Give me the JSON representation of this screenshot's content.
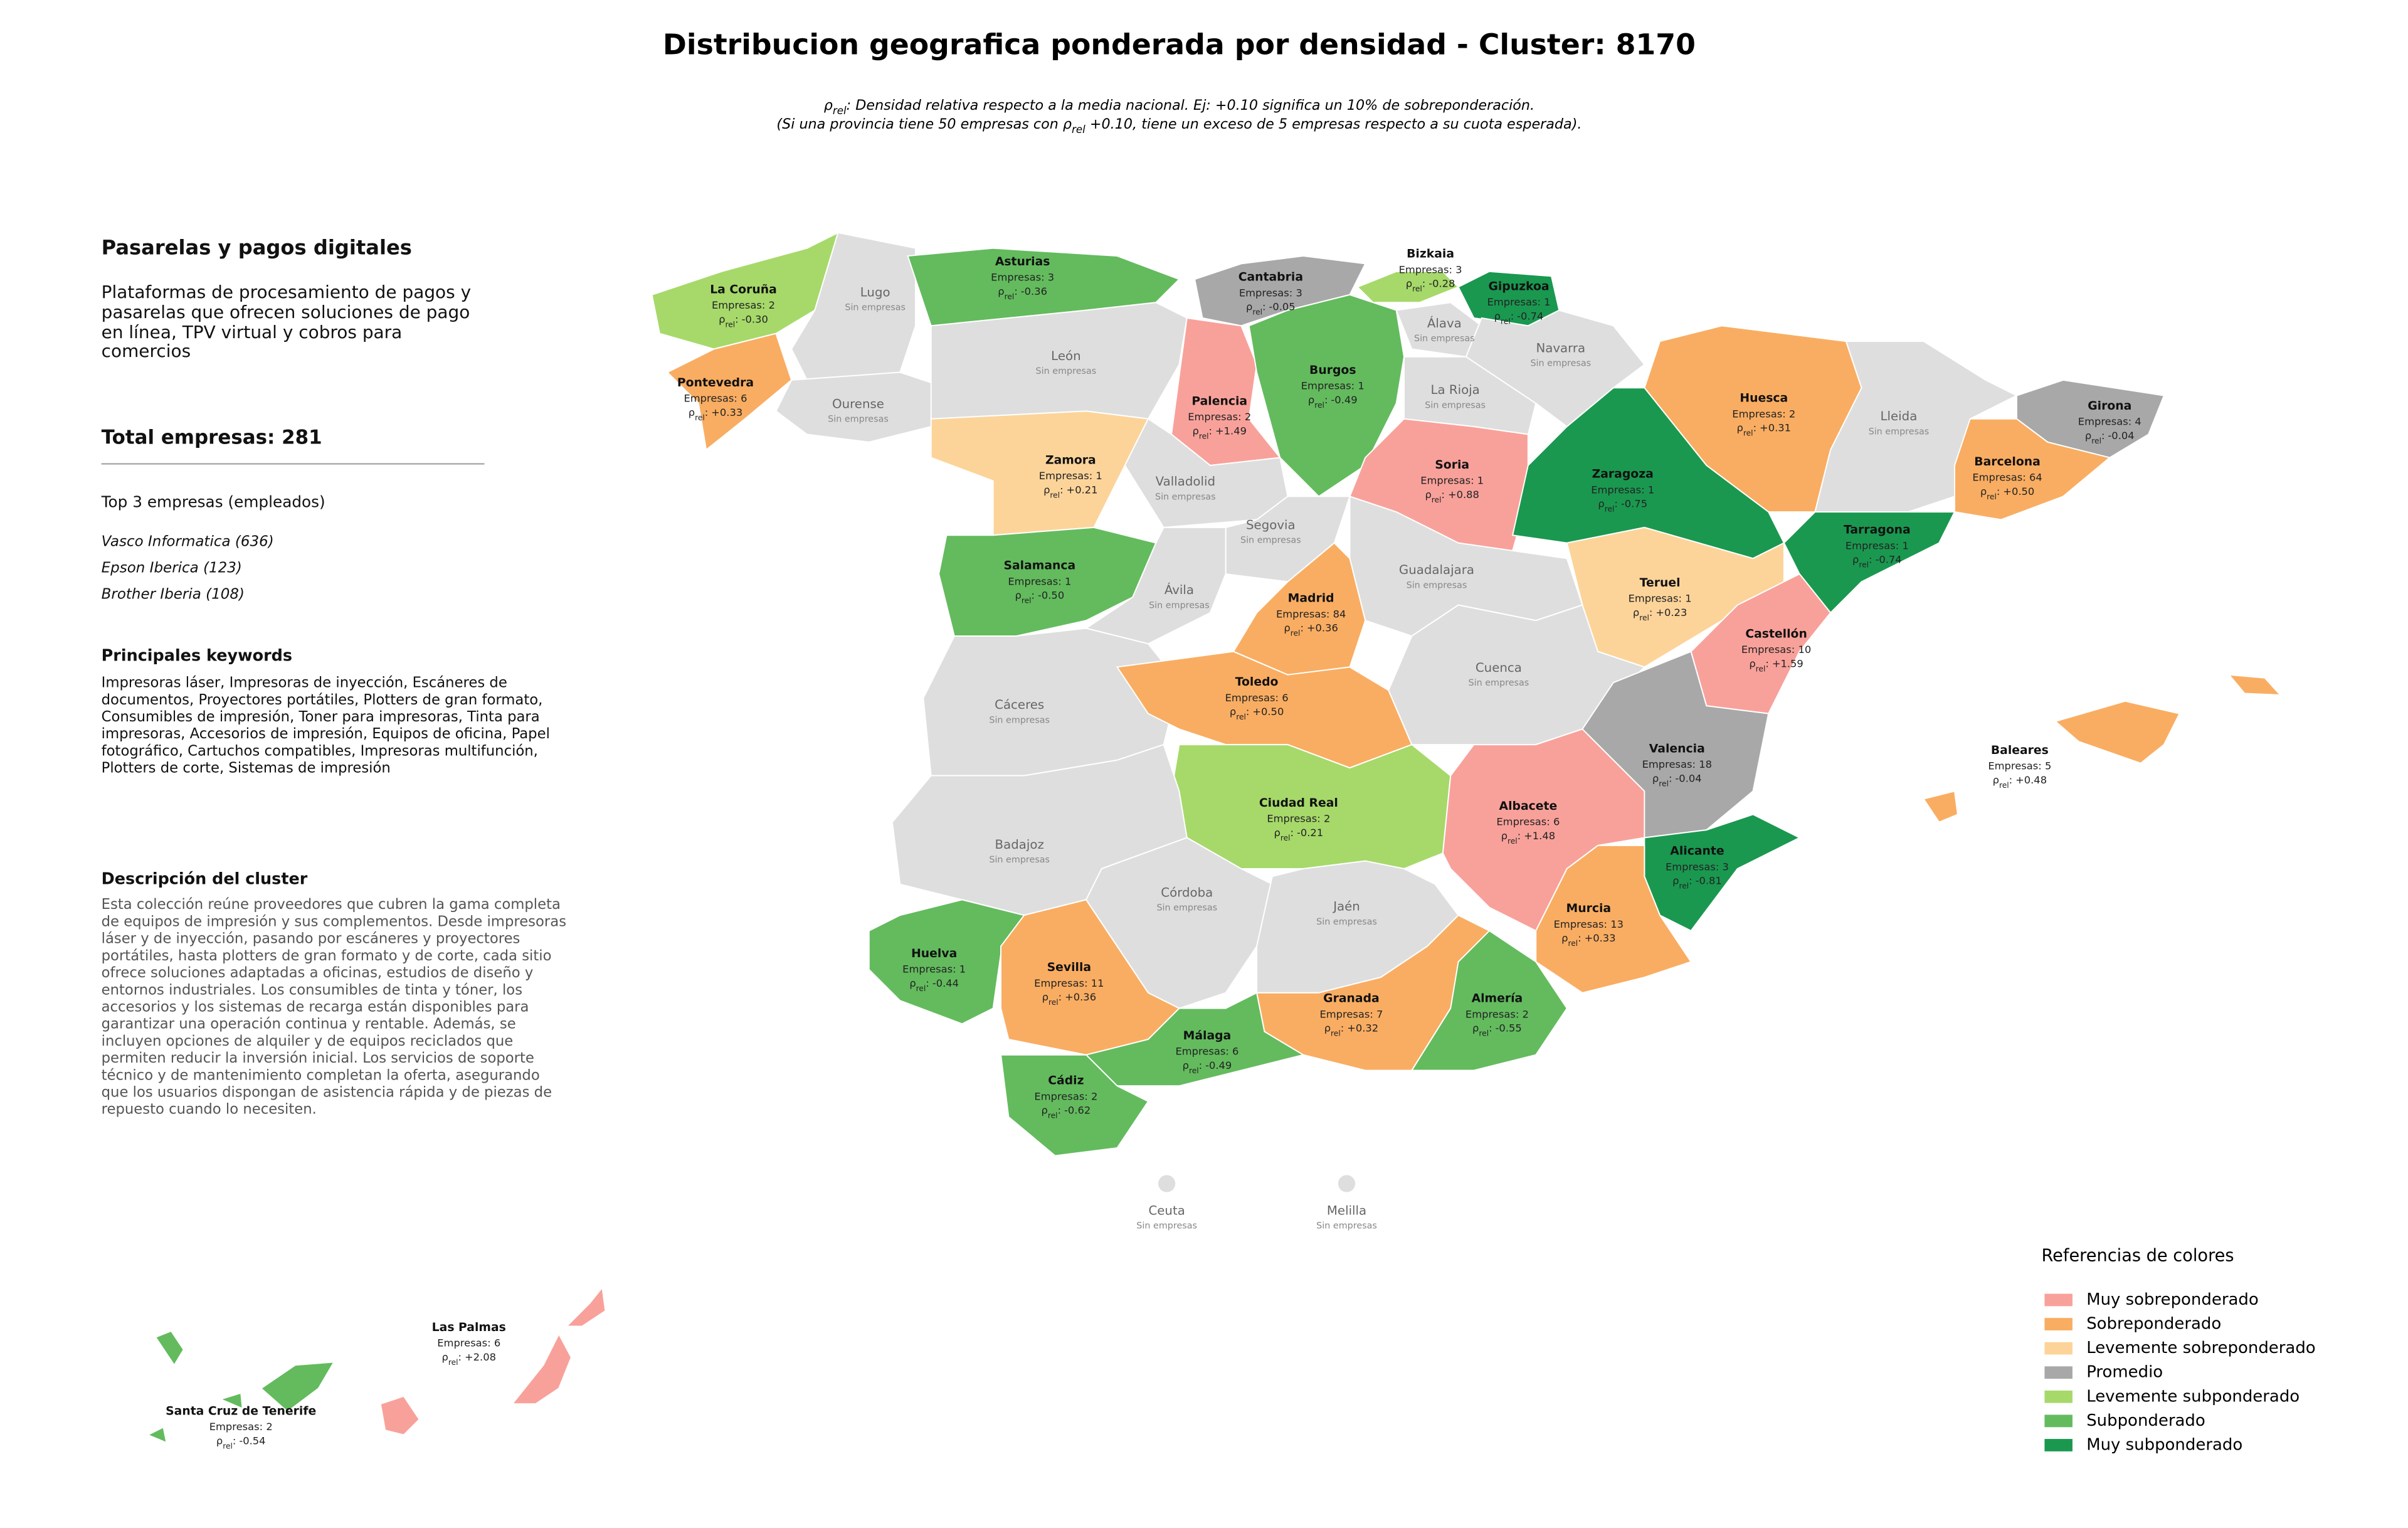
{
  "title": "Distribucion geografica ponderada por densidad - Cluster: 8170",
  "rho_symbol": "ρ",
  "rho_subscript": "rel",
  "rho_separator": ":",
  "notes": [
    {
      "pre": "",
      "post": ": Densidad relativa respecto a la media nacional. Ej: +0.10 significa un 10% de sobreponderación."
    },
    {
      "pre": "(Si una provincia tiene 50 empresas con ",
      "post": " +0.10, tiene un exceso de 5 empresas respecto a su cuota esperada)."
    }
  ],
  "panel": {
    "cluster_name": "Pasarelas y pagos digitales",
    "cluster_summary": "Plataformas de procesamiento de pagos y pasarelas que ofrecen soluciones de pago en línea, TPV virtual y cobros para comercios",
    "total": "Total empresas: 281",
    "top_heading": "Top 3 empresas (empleados)",
    "top": [
      "Vasco Informatica (636)",
      "Epson Iberica (123)",
      "Brother Iberia (108)"
    ],
    "keywords_heading": "Principales keywords",
    "keywords": "Impresoras láser, Impresoras de inyección, Escáneres de documentos, Proyectores portátiles, Plotters de gran formato, Consumibles de impresión, Toner para impresoras, Tinta para impresoras, Accesorios de impresión, Equipos de oficina, Papel fotográfico, Cartuchos compatibles, Impresoras multifunción, Plotters de corte, Sistemas de impresión",
    "description_heading": "Descripción del cluster",
    "description": "Esta colección reúne proveedores que cubren la gama completa de equipos de impresión y sus complementos. Desde impresoras láser y de inyección, pasando por escáneres y proyectores portátiles, hasta plotters de gran formato y de corte, cada sitio ofrece soluciones adaptadas a oficinas, estudios de diseño y entornos industriales. Los consumibles de tinta y tóner, los accesorios y los sistemas de recarga están disponibles para garantizar una operación continua y rentable. Además, se incluyen opciones de alquiler y de equipos reciclados que permiten reducir la inversión inicial. Los servicios de soporte técnico y de mantenimiento completan la oferta, asegurando que los usuarios dispongan de asistencia rápida y de piezas de repuesto cuando lo necesiten."
  },
  "legend": {
    "title": "Referencias de colores",
    "items": [
      {
        "label": "Muy sobreponderado",
        "color": "#f8a19a"
      },
      {
        "label": "Sobreponderado",
        "color": "#f9ad62"
      },
      {
        "label": "Levemente sobreponderado",
        "color": "#fcd49a"
      },
      {
        "label": "Promedio",
        "color": "#a8a8a8"
      },
      {
        "label": "Levemente subponderado",
        "color": "#a6d96a"
      },
      {
        "label": "Subponderado",
        "color": "#63bb5e"
      },
      {
        "label": "Muy subponderado",
        "color": "#1a9850"
      }
    ]
  },
  "no_data_color": "#dedede",
  "provinces": [
    {
      "name": "La Coruña",
      "empresas": "Empresas: 2",
      "rho": "-0.30",
      "category": 4
    },
    {
      "name": "Lugo",
      "note": "Sin empresas"
    },
    {
      "name": "Asturias",
      "empresas": "Empresas: 3",
      "rho": "-0.36",
      "category": 5
    },
    {
      "name": "Cantabria",
      "empresas": "Empresas: 3",
      "rho": "-0.05",
      "category": 3
    },
    {
      "name": "Bizkaia",
      "empresas": "Empresas: 3",
      "rho": "-0.28",
      "category": 4
    },
    {
      "name": "Gipuzkoa",
      "empresas": "Empresas: 1",
      "rho": "-0.74",
      "category": 6
    },
    {
      "name": "Pontevedra",
      "empresas": "Empresas: 6",
      "rho": "+0.33",
      "category": 1
    },
    {
      "name": "Ourense",
      "note": "Sin empresas"
    },
    {
      "name": "León",
      "note": "Sin empresas"
    },
    {
      "name": "Palencia",
      "empresas": "Empresas: 2",
      "rho": "+1.49",
      "category": 0
    },
    {
      "name": "Burgos",
      "empresas": "Empresas: 1",
      "rho": "-0.49",
      "category": 5
    },
    {
      "name": "Álava",
      "note": "Sin empresas"
    },
    {
      "name": "Navarra",
      "note": "Sin empresas"
    },
    {
      "name": "La Rioja",
      "note": "Sin empresas"
    },
    {
      "name": "Huesca",
      "empresas": "Empresas: 2",
      "rho": "+0.31",
      "category": 1
    },
    {
      "name": "Lleida",
      "note": "Sin empresas"
    },
    {
      "name": "Girona",
      "empresas": "Empresas: 4",
      "rho": "-0.04",
      "category": 3
    },
    {
      "name": "Zamora",
      "empresas": "Empresas: 1",
      "rho": "+0.21",
      "category": 2
    },
    {
      "name": "Valladolid",
      "note": "Sin empresas"
    },
    {
      "name": "Soria",
      "empresas": "Empresas: 1",
      "rho": "+0.88",
      "category": 0
    },
    {
      "name": "Zaragoza",
      "empresas": "Empresas: 1",
      "rho": "-0.75",
      "category": 6
    },
    {
      "name": "Barcelona",
      "empresas": "Empresas: 64",
      "rho": "+0.50",
      "category": 1
    },
    {
      "name": "Tarragona",
      "empresas": "Empresas: 1",
      "rho": "-0.74",
      "category": 6
    },
    {
      "name": "Segovia",
      "note": "Sin empresas"
    },
    {
      "name": "Salamanca",
      "empresas": "Empresas: 1",
      "rho": "-0.50",
      "category": 5
    },
    {
      "name": "Ávila",
      "note": "Sin empresas"
    },
    {
      "name": "Guadalajara",
      "note": "Sin empresas"
    },
    {
      "name": "Madrid",
      "empresas": "Empresas: 84",
      "rho": "+0.36",
      "category": 1
    },
    {
      "name": "Teruel",
      "empresas": "Empresas: 1",
      "rho": "+0.23",
      "category": 2
    },
    {
      "name": "Castellón",
      "empresas": "Empresas: 10",
      "rho": "+1.59",
      "category": 0
    },
    {
      "name": "Cáceres",
      "note": "Sin empresas"
    },
    {
      "name": "Toledo",
      "empresas": "Empresas: 6",
      "rho": "+0.50",
      "category": 1
    },
    {
      "name": "Cuenca",
      "note": "Sin empresas"
    },
    {
      "name": "Valencia",
      "empresas": "Empresas: 18",
      "rho": "-0.04",
      "category": 3
    },
    {
      "name": "Baleares",
      "empresas": "Empresas: 5",
      "rho": "+0.48",
      "category": 1
    },
    {
      "name": "Ciudad Real",
      "empresas": "Empresas: 2",
      "rho": "-0.21",
      "category": 4
    },
    {
      "name": "Albacete",
      "empresas": "Empresas: 6",
      "rho": "+1.48",
      "category": 0
    },
    {
      "name": "Badajoz",
      "note": "Sin empresas"
    },
    {
      "name": "Alicante",
      "empresas": "Empresas: 3",
      "rho": "-0.81",
      "category": 6
    },
    {
      "name": "Córdoba",
      "note": "Sin empresas"
    },
    {
      "name": "Jaén",
      "note": "Sin empresas"
    },
    {
      "name": "Murcia",
      "empresas": "Empresas: 13",
      "rho": "+0.33",
      "category": 1
    },
    {
      "name": "Huelva",
      "empresas": "Empresas: 1",
      "rho": "-0.44",
      "category": 5
    },
    {
      "name": "Sevilla",
      "empresas": "Empresas: 11",
      "rho": "+0.36",
      "category": 1
    },
    {
      "name": "Granada",
      "empresas": "Empresas: 7",
      "rho": "+0.32",
      "category": 1
    },
    {
      "name": "Almería",
      "empresas": "Empresas: 2",
      "rho": "-0.55",
      "category": 5
    },
    {
      "name": "Málaga",
      "empresas": "Empresas: 6",
      "rho": "-0.49",
      "category": 5
    },
    {
      "name": "Cádiz",
      "empresas": "Empresas: 2",
      "rho": "-0.62",
      "category": 5
    },
    {
      "name": "Ceuta",
      "note": "Sin empresas"
    },
    {
      "name": "Melilla",
      "note": "Sin empresas"
    },
    {
      "name": "Las Palmas",
      "empresas": "Empresas: 6",
      "rho": "+2.08",
      "category": 0
    },
    {
      "name": "Santa Cruz de Tenerife",
      "empresas": "Empresas: 2",
      "rho": "-0.54",
      "category": 5
    }
  ]
}
